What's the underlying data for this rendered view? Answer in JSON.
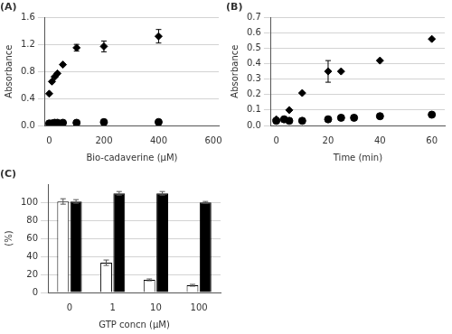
{
  "chart_data": [
    {
      "type": "scatter",
      "title": "(A)",
      "xlabel": "Bio-cadaverine (μM)",
      "ylabel": "Absorbance",
      "xlim": [
        -15,
        620
      ],
      "ylim": [
        0,
        1.6
      ],
      "xticks": [
        0,
        200,
        400,
        600
      ],
      "yticks": [
        {
          "value": 0,
          "label": "0.0"
        },
        0.4,
        0.8,
        1.2,
        1.6
      ],
      "grid": "y",
      "series": [
        {
          "marker": "diamond",
          "color": "#000000",
          "x": [
            0,
            10,
            20,
            30,
            50,
            100,
            200,
            400
          ],
          "values": [
            0.47,
            0.65,
            0.72,
            0.77,
            0.9,
            1.15,
            1.17,
            1.32
          ],
          "yerr": [
            0.0,
            0.0,
            0.0,
            0.0,
            0.0,
            0.05,
            0.08,
            0.1
          ]
        },
        {
          "marker": "circle",
          "color": "#000000",
          "x": [
            0,
            10,
            20,
            30,
            50,
            100,
            200,
            400
          ],
          "values": [
            0.03,
            0.03,
            0.04,
            0.04,
            0.04,
            0.04,
            0.05,
            0.05
          ],
          "yerr": [
            0.0,
            0.0,
            0.0,
            0.0,
            0.0,
            0.0,
            0.0,
            0.0
          ]
        }
      ]
    },
    {
      "type": "scatter",
      "title": "(B)",
      "xlabel": "Time (min)",
      "ylabel": "Absorbance",
      "xlim": [
        -2,
        65
      ],
      "ylim": [
        0,
        0.7
      ],
      "xticks": [
        0,
        20,
        40,
        60
      ],
      "yticks": [
        {
          "value": 0,
          "label": "0.0"
        },
        0.1,
        0.2,
        0.3,
        0.4,
        0.5,
        0.6,
        0.7
      ],
      "grid": "y",
      "series": [
        {
          "marker": "diamond",
          "color": "#000000",
          "x": [
            0,
            5,
            10,
            20,
            25,
            40,
            60
          ],
          "values": [
            0.04,
            0.1,
            0.21,
            0.35,
            0.35,
            0.42,
            0.56
          ],
          "yerr": [
            0.0,
            0.0,
            0.0,
            0.07,
            0.0,
            0.0,
            0.0
          ]
        },
        {
          "marker": "circle",
          "color": "#000000",
          "x": [
            0,
            3,
            5,
            10,
            20,
            25,
            30,
            40,
            60
          ],
          "values": [
            0.03,
            0.04,
            0.03,
            0.03,
            0.04,
            0.05,
            0.05,
            0.06,
            0.07
          ],
          "yerr": [
            0.0,
            0.0,
            0.0,
            0.0,
            0.0,
            0.0,
            0.0,
            0.0,
            0.0
          ]
        }
      ]
    },
    {
      "type": "bar",
      "title": "(C)",
      "xlabel": "GTP concn (μM)",
      "ylabel": "(%)",
      "categories": [
        "0",
        "1",
        "10",
        "100"
      ],
      "ylim": [
        0,
        120
      ],
      "yticks": [
        0,
        20,
        40,
        60,
        80,
        100
      ],
      "grid": "y",
      "series": [
        {
          "color": "#ffffff",
          "values": [
            101,
            33,
            14,
            8
          ],
          "yerr": [
            3,
            3,
            1,
            1
          ]
        },
        {
          "color": "#000000",
          "values": [
            101,
            110,
            110,
            100
          ],
          "yerr": [
            2,
            2,
            2,
            1
          ]
        }
      ]
    }
  ]
}
